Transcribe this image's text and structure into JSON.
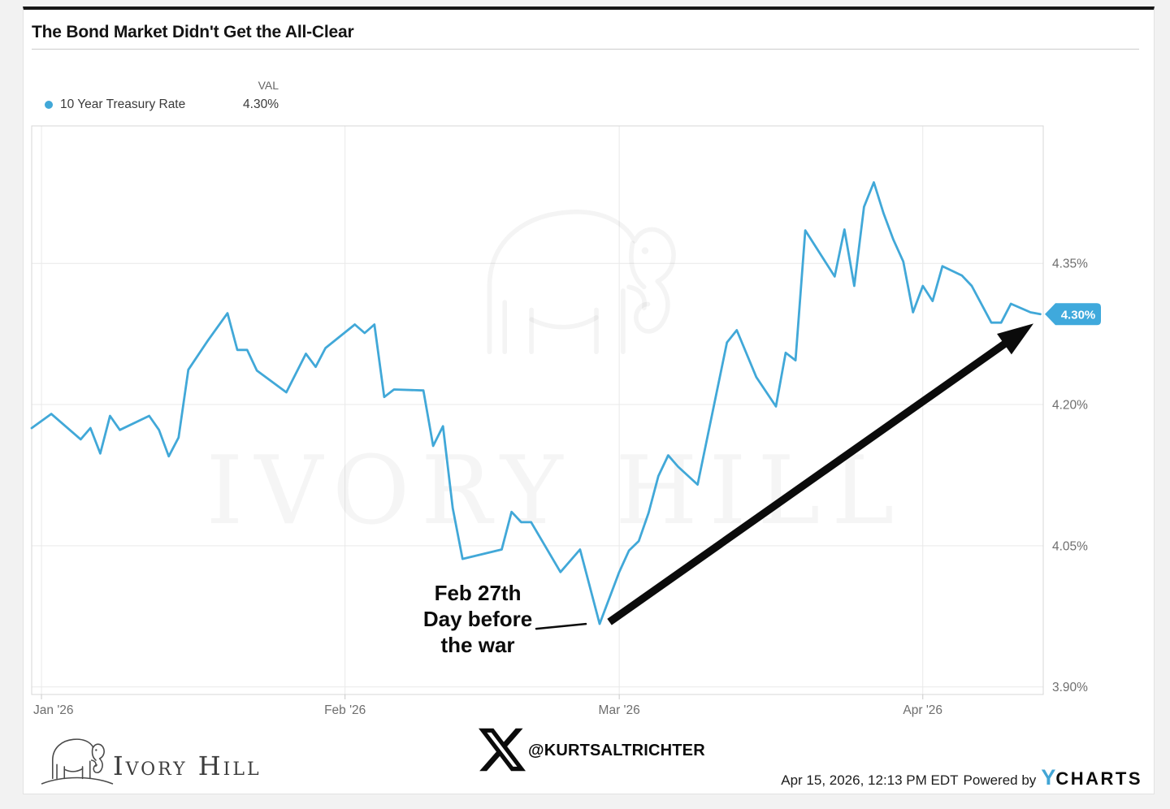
{
  "header": {
    "title": "The Bond Market Didn't Get the All-Clear"
  },
  "legend": {
    "value_header": "VAL",
    "series_label": "10 Year Treasury Rate",
    "series_value": "4.30%"
  },
  "colors": {
    "line": "#41a8d8",
    "badge": "#3fa9dc",
    "badge_text": "#ffffff",
    "arrow": "#0b0b0b",
    "axis_text": "#6e6e6e",
    "grid": "#e9e9e9",
    "ycharts_blue": "#42a5d5"
  },
  "chart_data": {
    "type": "line",
    "title": "The Bond Market Didn't Get the All-Clear",
    "x_unit": "days_since_2026-01-01",
    "x_domain": [
      -1,
      102.3
    ],
    "y_domain": [
      3.892,
      4.496
    ],
    "grid": true,
    "legend_position": "top-left",
    "x_ticks": [
      {
        "day": 0,
        "label": "Jan '26"
      },
      {
        "day": 31,
        "label": "Feb '26"
      },
      {
        "day": 59,
        "label": "Mar '26"
      },
      {
        "day": 90,
        "label": "Apr '26"
      }
    ],
    "y_ticks": [
      {
        "value": 4.35,
        "label": "4.35%"
      },
      {
        "value": 4.2,
        "label": "4.20%"
      },
      {
        "value": 4.05,
        "label": "4.05%"
      },
      {
        "value": 3.9,
        "label": "3.90%"
      }
    ],
    "series": [
      {
        "name": "10 Year Treasury Rate",
        "color": "#41a8d8",
        "points": [
          [
            -1,
            4.175
          ],
          [
            1,
            4.19
          ],
          [
            4,
            4.163
          ],
          [
            5,
            4.175
          ],
          [
            6,
            4.148
          ],
          [
            7,
            4.188
          ],
          [
            8,
            4.173
          ],
          [
            11,
            4.188
          ],
          [
            12,
            4.173
          ],
          [
            13,
            4.145
          ],
          [
            14,
            4.165
          ],
          [
            15,
            4.237
          ],
          [
            17,
            4.268
          ],
          [
            19,
            4.297
          ],
          [
            20,
            4.258
          ],
          [
            21,
            4.258
          ],
          [
            22,
            4.236
          ],
          [
            25,
            4.213
          ],
          [
            27,
            4.254
          ],
          [
            28,
            4.24
          ],
          [
            29,
            4.26
          ],
          [
            32,
            4.285
          ],
          [
            33,
            4.276
          ],
          [
            34,
            4.285
          ],
          [
            35,
            4.208
          ],
          [
            36,
            4.216
          ],
          [
            39,
            4.215
          ],
          [
            40,
            4.156
          ],
          [
            41,
            4.177
          ],
          [
            42,
            4.09
          ],
          [
            43,
            4.036
          ],
          [
            47,
            4.046
          ],
          [
            48,
            4.086
          ],
          [
            49,
            4.075
          ],
          [
            50,
            4.075
          ],
          [
            53,
            4.022
          ],
          [
            55,
            4.046
          ],
          [
            57,
            3.967
          ],
          [
            59,
            4.022
          ],
          [
            60,
            4.045
          ],
          [
            61,
            4.055
          ],
          [
            62,
            4.085
          ],
          [
            63,
            4.124
          ],
          [
            64,
            4.146
          ],
          [
            65,
            4.134
          ],
          [
            67,
            4.115
          ],
          [
            70,
            4.266
          ],
          [
            71,
            4.279
          ],
          [
            73,
            4.229
          ],
          [
            75,
            4.198
          ],
          [
            76,
            4.255
          ],
          [
            77,
            4.247
          ],
          [
            78,
            4.385
          ],
          [
            81,
            4.336
          ],
          [
            82,
            4.386
          ],
          [
            83,
            4.326
          ],
          [
            84,
            4.41
          ],
          [
            85,
            4.436
          ],
          [
            86,
            4.403
          ],
          [
            87,
            4.375
          ],
          [
            88,
            4.352
          ],
          [
            89,
            4.298
          ],
          [
            90,
            4.326
          ],
          [
            91,
            4.31
          ],
          [
            92,
            4.347
          ],
          [
            94,
            4.337
          ],
          [
            95,
            4.326
          ],
          [
            97,
            4.287
          ],
          [
            98,
            4.287
          ],
          [
            99,
            4.307
          ],
          [
            101,
            4.298
          ],
          [
            102,
            4.296
          ]
        ]
      }
    ],
    "last_value_badge": {
      "label": "4.30%",
      "value": 4.296
    },
    "annotation": {
      "lines": [
        "Feb 27th",
        "Day before",
        "the war"
      ],
      "anchor_day": 57,
      "anchor_value": 3.967
    },
    "arrow": {
      "from": {
        "day": 58,
        "value": 3.969
      },
      "to": {
        "day": 101.3,
        "value": 4.286
      }
    },
    "watermark": {
      "text": "IVORY HILL"
    }
  },
  "footer": {
    "brand_name": "Ivory Hill",
    "x_handle": "@KURTSALTRICHTER",
    "timestamp": "Apr 15, 2026, 12:13 PM EDT",
    "powered_by": "Powered by",
    "ycharts_logo_y": "Y",
    "ycharts_logo_rest": "CHARTS"
  }
}
